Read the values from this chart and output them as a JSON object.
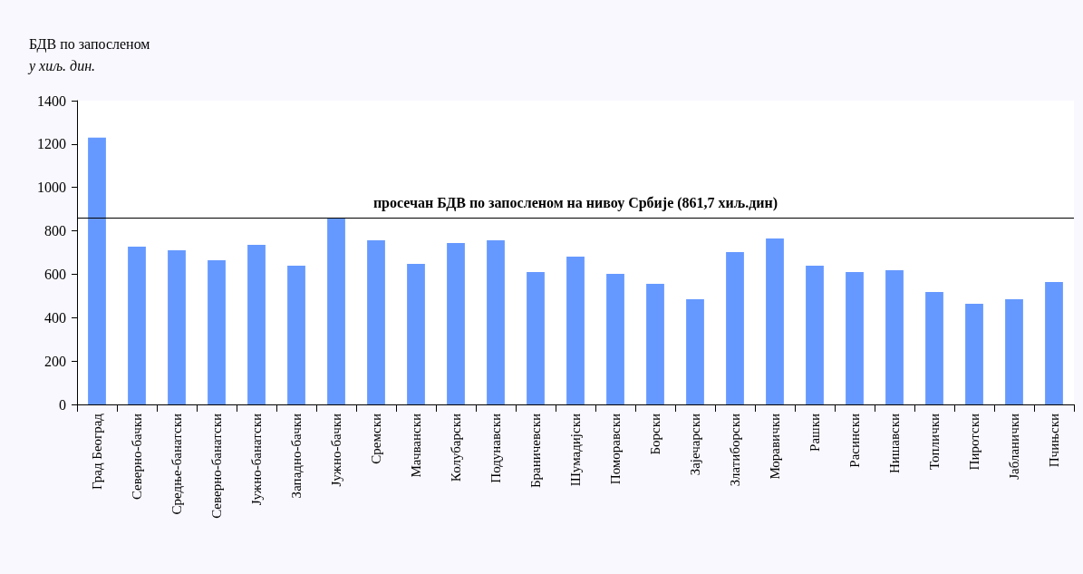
{
  "chart_data": {
    "type": "bar",
    "ylabel": "БДВ по запосленом",
    "annotations": [
      "у хиљ. дин."
    ],
    "categories": [
      "Град Београд",
      "Северно-бачки",
      "Средње-банатски",
      "Северно-банатски",
      "Јужно-банатски",
      "Западно-бачки",
      "Јужно-бачки",
      "Сремски",
      "Мачвански",
      "Колубарски",
      "Подунавски",
      "Браничевски",
      "Шумадијски",
      "Поморавски",
      "Борски",
      "Зајечарски",
      "Златиборски",
      "Моравички",
      "Рашки",
      "Расински",
      "Нишавски",
      "Топлички",
      "Пиротски",
      "Јабланички",
      "Пчињски"
    ],
    "values": [
      1230,
      727,
      710,
      664,
      736,
      639,
      860,
      756,
      648,
      744,
      756,
      610,
      681,
      602,
      556,
      485,
      702,
      765,
      639,
      610,
      618,
      518,
      464,
      485,
      564
    ],
    "color": "#6699ff",
    "ylim": [
      0,
      1400
    ],
    "yticks": [
      0,
      200,
      400,
      600,
      800,
      1000,
      1200,
      1400
    ],
    "grid": false,
    "ref_lines": [
      {
        "axis": "y",
        "value": 861.7,
        "label": "просечан БДВ по запосленом на нивоу Србије (861,7 хиљ.дин)",
        "color": "#000000",
        "line_style": "solid"
      }
    ]
  }
}
